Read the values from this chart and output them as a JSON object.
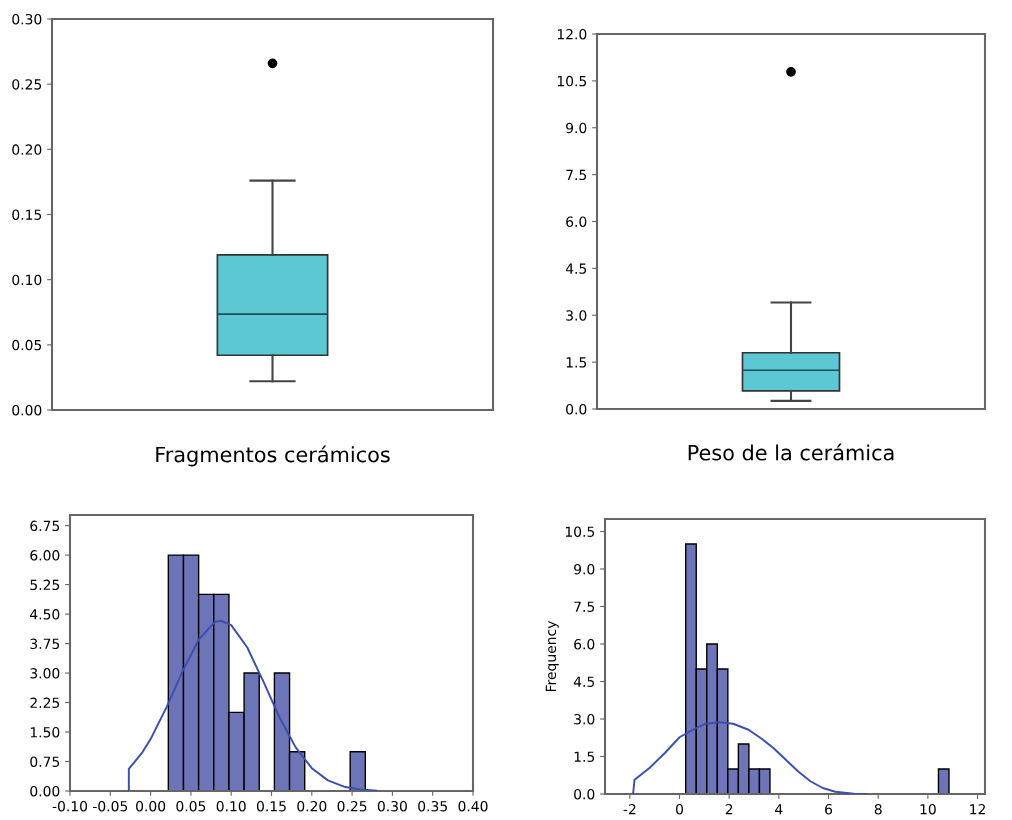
{
  "chart_data": [
    {
      "type": "box",
      "categories": [
        null
      ],
      "xlabel": "Fragmentos cerámicos",
      "color": "#5bc8d4",
      "boxes": [
        {
          "low": 0.022,
          "q1": 0.042,
          "median": 0.0735,
          "q3": 0.119,
          "high": 0.176,
          "outliers": [
            0.266
          ]
        }
      ],
      "ylim": [
        0,
        0.3
      ],
      "yticks": [
        {
          "value": 0,
          "label": "0.00"
        },
        {
          "value": 0.05,
          "label": "0.05"
        },
        {
          "value": 0.1,
          "label": "0.10"
        },
        {
          "value": 0.15,
          "label": "0.15"
        },
        {
          "value": 0.2,
          "label": "0.20"
        },
        {
          "value": 0.25,
          "label": "0.25"
        },
        {
          "value": 0.3,
          "label": "0.30"
        }
      ],
      "grid": false
    },
    {
      "type": "box",
      "categories": [
        null
      ],
      "xlabel": "Peso de la cerámica",
      "color": "#5bc8d4",
      "boxes": [
        {
          "low": 0.26,
          "q1": 0.58,
          "median": 1.24,
          "q3": 1.8,
          "high": 3.41,
          "outliers": [
            10.79
          ]
        }
      ],
      "ylim": [
        0,
        12
      ],
      "yticks": [
        {
          "value": 0,
          "label": "0.0"
        },
        {
          "value": 1.5,
          "label": "1.5"
        },
        {
          "value": 3,
          "label": "3.0"
        },
        {
          "value": 4.5,
          "label": "4.5"
        },
        {
          "value": 6,
          "label": "6.0"
        },
        {
          "value": 7.5,
          "label": "7.5"
        },
        {
          "value": 9,
          "label": "9.0"
        },
        {
          "value": 10.5,
          "label": "10.5"
        },
        {
          "value": 12,
          "label": "12.0"
        }
      ],
      "grid": false
    },
    {
      "type": "histogram",
      "color": "#6d74b7",
      "bins": [
        0.022,
        0.0408,
        0.0596,
        0.0784,
        0.0972,
        0.116,
        0.1348,
        0.1536,
        0.1724,
        0.1912,
        0.21,
        0.2288,
        0.2476,
        0.2664
      ],
      "values": [
        6,
        6,
        5,
        5,
        2,
        3,
        0,
        3,
        1,
        0,
        0,
        0,
        1
      ],
      "series": [
        {
          "type": "line",
          "color": "#3b4fb0",
          "x": [
            -0.027,
            -0.027,
            -0.01,
            0.0,
            0.02,
            0.04,
            0.06,
            0.08,
            0.087,
            0.1,
            0.12,
            0.14,
            0.16,
            0.18,
            0.2,
            0.22,
            0.24,
            0.26,
            0.28
          ],
          "values": [
            0,
            0.56,
            0.99,
            1.32,
            2.14,
            3.06,
            3.86,
            4.3,
            4.33,
            4.22,
            3.65,
            2.78,
            1.87,
            1.11,
            0.58,
            0.27,
            0.11,
            0.04,
            0.01
          ]
        }
      ],
      "xlim": [
        -0.1,
        0.4
      ],
      "xticks": [
        {
          "value": -0.1,
          "label": "-0.10"
        },
        {
          "value": -0.05,
          "label": "-0.05"
        },
        {
          "value": 0,
          "label": "0.00"
        },
        {
          "value": 0.05,
          "label": "0.05"
        },
        {
          "value": 0.1,
          "label": "0.10"
        },
        {
          "value": 0.15,
          "label": "0.15"
        },
        {
          "value": 0.2,
          "label": "0.20"
        },
        {
          "value": 0.25,
          "label": "0.25"
        },
        {
          "value": 0.3,
          "label": "0.30"
        },
        {
          "value": 0.35,
          "label": "0.35"
        },
        {
          "value": 0.4,
          "label": "0.40"
        }
      ],
      "ylim": [
        0,
        7.02
      ],
      "yticks": [
        {
          "value": 0,
          "label": "0.00"
        },
        {
          "value": 0.75,
          "label": "0.75"
        },
        {
          "value": 1.5,
          "label": "1.50"
        },
        {
          "value": 2.25,
          "label": "2.25"
        },
        {
          "value": 3,
          "label": "3.00"
        },
        {
          "value": 3.75,
          "label": "3.75"
        },
        {
          "value": 4.5,
          "label": "4.50"
        },
        {
          "value": 5.25,
          "label": "5.25"
        },
        {
          "value": 6,
          "label": "6.00"
        },
        {
          "value": 6.75,
          "label": "6.75"
        }
      ],
      "grid": false
    },
    {
      "type": "histogram",
      "color": "#6d74b7",
      "ylabel": "Frequency",
      "bins": [
        0.25,
        0.674,
        1.098,
        1.522,
        1.946,
        2.37,
        2.794,
        3.218,
        3.642,
        4.066,
        4.49,
        4.914,
        5.338,
        5.762,
        6.186,
        6.61,
        7.034,
        7.458,
        7.882,
        8.306,
        8.73,
        9.154,
        9.578,
        10.002,
        10.426,
        10.85
      ],
      "values": [
        10,
        5,
        6,
        5,
        1,
        2,
        1,
        1,
        0,
        0,
        0,
        0,
        0,
        0,
        0,
        0,
        0,
        0,
        0,
        0,
        0,
        0,
        0,
        0,
        1
      ],
      "series": [
        {
          "type": "line",
          "color": "#3b4fb0",
          "x": [
            -1.87,
            -1.81,
            -1.21,
            -0.59,
            0,
            0.54,
            1.03,
            1.6,
            2.16,
            2.78,
            3.28,
            3.78,
            4.28,
            4.78,
            5.27,
            5.77,
            6.27,
            7.02,
            7.52
          ],
          "values": [
            0,
            0.57,
            1.04,
            1.64,
            2.27,
            2.57,
            2.81,
            2.87,
            2.81,
            2.57,
            2.23,
            1.84,
            1.37,
            0.9,
            0.51,
            0.24,
            0.09,
            0.01,
            0
          ]
        }
      ],
      "xlim": [
        -3,
        12.3
      ],
      "xticks": [
        -2,
        0,
        2,
        4,
        6,
        8,
        10,
        12
      ],
      "ylim": [
        0,
        11
      ],
      "yticks": [
        {
          "value": 0,
          "label": "0.0"
        },
        {
          "value": 1.5,
          "label": "1.5"
        },
        {
          "value": 3,
          "label": "3.0"
        },
        {
          "value": 4.5,
          "label": "4.5"
        },
        {
          "value": 6,
          "label": "6.0"
        },
        {
          "value": 7.5,
          "label": "7.5"
        },
        {
          "value": 9,
          "label": "9.0"
        },
        {
          "value": 10.5,
          "label": "10.5"
        }
      ],
      "grid": false
    }
  ]
}
